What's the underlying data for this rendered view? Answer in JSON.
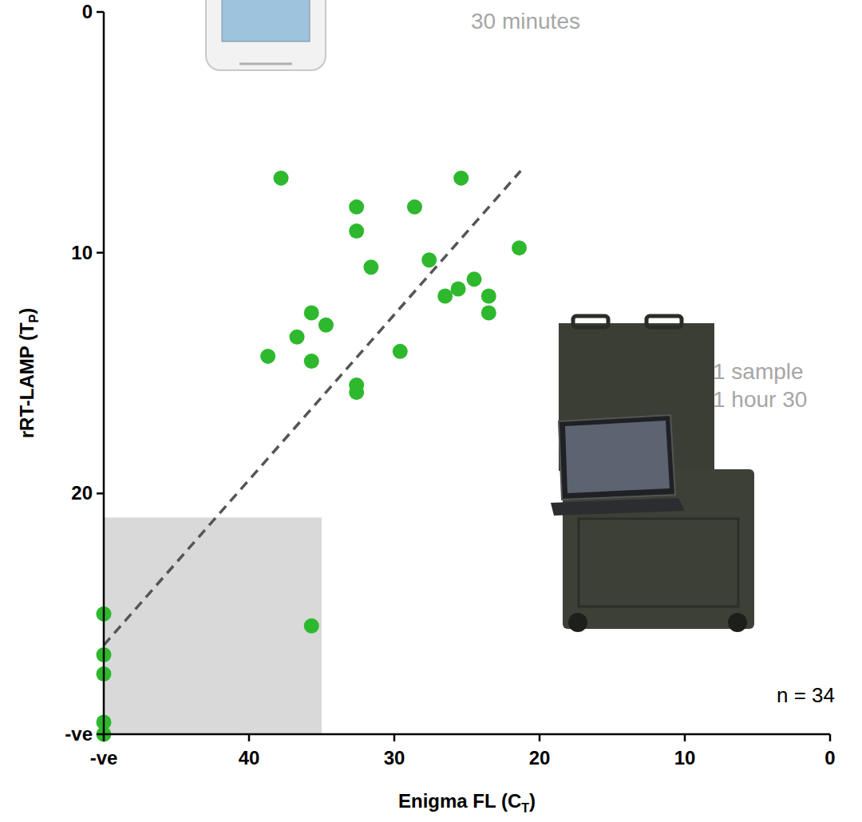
{
  "chart_data": {
    "type": "scatter",
    "xlabel": "Enigma FL (CT)",
    "ylabel": "rRT-LAMP (TP)",
    "x": [
      37.8,
      25.4,
      32.6,
      28.6,
      32.6,
      21.4,
      31.6,
      27.6,
      24.5,
      25.6,
      26.5,
      23.5,
      23.5,
      35.7,
      34.7,
      36.7,
      38.7,
      29.6,
      35.7,
      32.6,
      32.6,
      35.7,
      50,
      50,
      50,
      50,
      50
    ],
    "values": [
      6.9,
      6.9,
      8.1,
      8.1,
      9.1,
      9.8,
      10.6,
      10.3,
      11.1,
      11.5,
      11.8,
      11.8,
      12.5,
      12.5,
      13.0,
      13.5,
      14.3,
      14.1,
      14.5,
      15.5,
      15.8,
      25.5,
      25.0,
      26.7,
      27.5,
      29.5,
      30.0
    ],
    "color": "#2eb82e",
    "marker": "circle",
    "xlim": [
      50,
      0
    ],
    "ylim": [
      30,
      0
    ],
    "xticks": [
      {
        "value": 50,
        "label": "-ve"
      },
      40,
      30,
      20,
      10,
      0
    ],
    "yticks": [
      0,
      10,
      20,
      {
        "value": 30,
        "label": "-ve"
      }
    ],
    "grid": false,
    "trend_line": {
      "x": [
        50,
        21.3
      ],
      "values": [
        26.3,
        6.6
      ],
      "color": "#555555",
      "line_style": "dashed"
    },
    "shaded_region": {
      "x": [
        50,
        35
      ],
      "values": [
        30,
        21
      ],
      "color": "#d9d9d9"
    },
    "annotations": [
      "30 minutes",
      "1 sample",
      "1 hour 30",
      "n = 34"
    ]
  }
}
